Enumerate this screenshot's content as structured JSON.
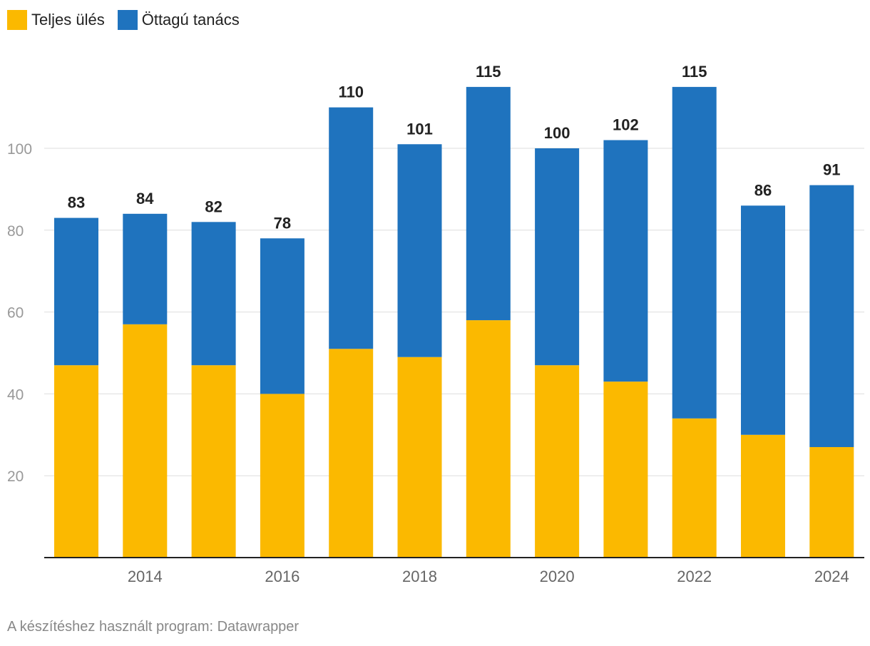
{
  "legend": {
    "items": [
      {
        "label": "Teljes ülés",
        "color": "#fbb900"
      },
      {
        "label": "Öttagú tanács",
        "color": "#1f73be"
      }
    ]
  },
  "footer": {
    "text": "A készítéshez használt program: Datawrapper"
  },
  "chart_data": {
    "type": "bar",
    "stacked": true,
    "x": [
      2013,
      2014,
      2015,
      2016,
      2017,
      2018,
      2019,
      2020,
      2021,
      2022,
      2023,
      2024
    ],
    "x_tick_labels": [
      "2014",
      "2016",
      "2018",
      "2020",
      "2022",
      "2024"
    ],
    "x_tick_values": [
      2014,
      2016,
      2018,
      2020,
      2022,
      2024
    ],
    "series": [
      {
        "name": "Teljes ülés",
        "color": "#fbb900",
        "values": [
          47,
          57,
          47,
          40,
          51,
          49,
          58,
          47,
          43,
          34,
          30,
          27
        ]
      },
      {
        "name": "Öttagú tanács",
        "color": "#1f73be",
        "values": [
          36,
          27,
          35,
          38,
          59,
          52,
          57,
          53,
          59,
          81,
          56,
          64
        ]
      }
    ],
    "totals": [
      83,
      84,
      82,
      78,
      110,
      101,
      115,
      100,
      102,
      115,
      86,
      91
    ],
    "y_ticks": [
      20,
      40,
      60,
      80,
      100
    ],
    "ylim": [
      0,
      120
    ],
    "grid": true,
    "title": "",
    "xlabel": "",
    "ylabel": "",
    "legend_position": "top-left"
  }
}
